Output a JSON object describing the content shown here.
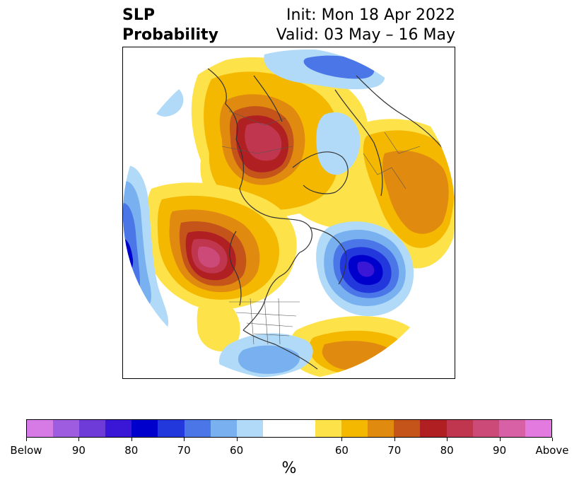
{
  "title": {
    "left_line1": "SLP",
    "left_line2": "Probability",
    "right_line1": "Init: Mon 18 Apr 2022",
    "right_line2": "Valid: 03 May – 16 May"
  },
  "colorbar": {
    "unit": "%",
    "below_colors": [
      "#d67ae5",
      "#9e5ce1",
      "#6e3ad8",
      "#3a16d6",
      "#0000cc",
      "#2238dd",
      "#4a76e8",
      "#78b0f0",
      "#b0daf8"
    ],
    "neutral_color": "#ffffff",
    "above_colors": [
      "#fee24a",
      "#f4b800",
      "#e08a10",
      "#c4541a",
      "#b02023",
      "#c0364e",
      "#cc4a78",
      "#d860a4",
      "#e27ae0"
    ],
    "tick_labels": [
      "Below",
      "90",
      "80",
      "70",
      "60",
      "60",
      "70",
      "80",
      "90",
      "Above"
    ]
  },
  "map": {
    "colors": {
      "above_light": "#fee24a",
      "above_mid": "#f4b800",
      "above_orange": "#e08a10",
      "above_dark_orange": "#c4541a",
      "above_red": "#b02023",
      "above_crimson": "#c0364e",
      "above_rose": "#cc4a78",
      "below_light": "#b0daf8",
      "below_mid": "#78b0f0",
      "below_blue": "#4a76e8",
      "below_strong": "#2238dd",
      "below_dark": "#0000cc",
      "below_deep": "#3a16d6",
      "coastline": "#333333"
    }
  }
}
